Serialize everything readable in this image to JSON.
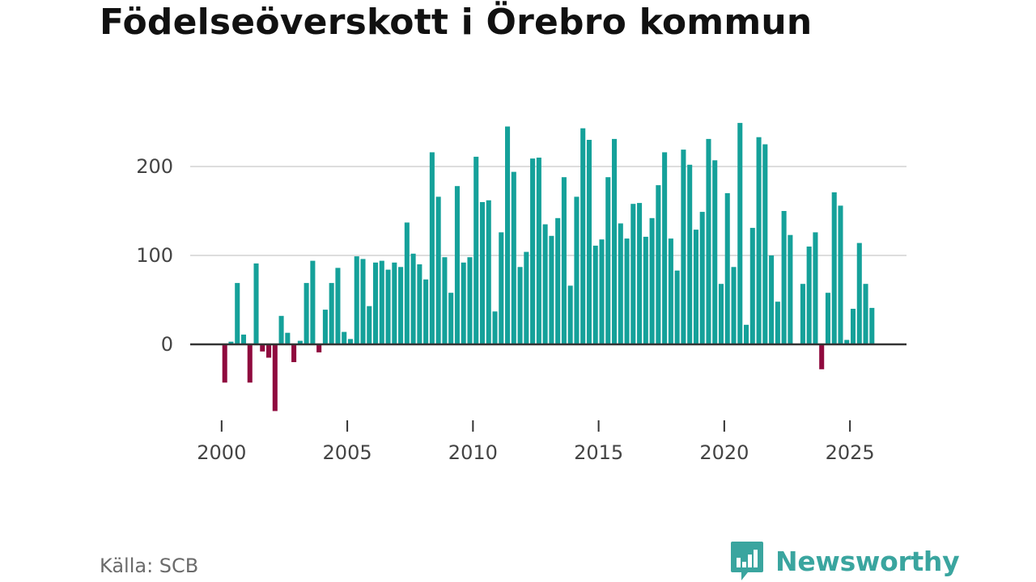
{
  "title": "Födelseöverskott i Örebro kommun",
  "source": "Källa: SCB",
  "brand": {
    "name": "Newsworthy",
    "logo_icon": "newsworthy-bar-chart-bubble-icon",
    "color": "#3aa59f"
  },
  "colors": {
    "positive": "#15a19a",
    "negative": "#8f0a3e",
    "grid": "#dddddd",
    "zero_line": "#333333",
    "axis_tick": "#333333"
  },
  "chart_data": {
    "type": "bar",
    "title": "Födelseöverskott i Örebro kommun",
    "xlabel": "",
    "ylabel": "",
    "frequency": "quarterly",
    "x_start": 2000.0,
    "x_step": 0.25,
    "xlim": [
      1998.75,
      2027.25
    ],
    "ylim": [
      -90,
      290
    ],
    "y_ticks": [
      0,
      100,
      200
    ],
    "x_ticks": [
      2000,
      2005,
      2010,
      2015,
      2020,
      2025
    ],
    "grid": true,
    "values": [
      -43,
      3,
      69,
      11,
      -43,
      91,
      -8,
      -15,
      -75,
      32,
      13,
      -20,
      4,
      69,
      94,
      -9,
      39,
      69,
      86,
      14,
      6,
      99,
      96,
      43,
      92,
      94,
      84,
      92,
      87,
      137,
      102,
      90,
      73,
      216,
      166,
      98,
      58,
      178,
      92,
      98,
      211,
      160,
      162,
      37,
      126,
      245,
      194,
      87,
      104,
      209,
      210,
      135,
      122,
      142,
      188,
      66,
      166,
      243,
      230,
      111,
      118,
      188,
      231,
      136,
      119,
      158,
      159,
      121,
      142,
      179,
      216,
      119,
      83,
      219,
      202,
      129,
      149,
      231,
      207,
      68,
      170,
      87,
      249,
      22,
      131,
      233,
      225,
      100,
      48,
      150,
      123,
      0,
      68,
      110,
      126,
      -28,
      58,
      171,
      156,
      5,
      40,
      114,
      68,
      41
    ]
  }
}
